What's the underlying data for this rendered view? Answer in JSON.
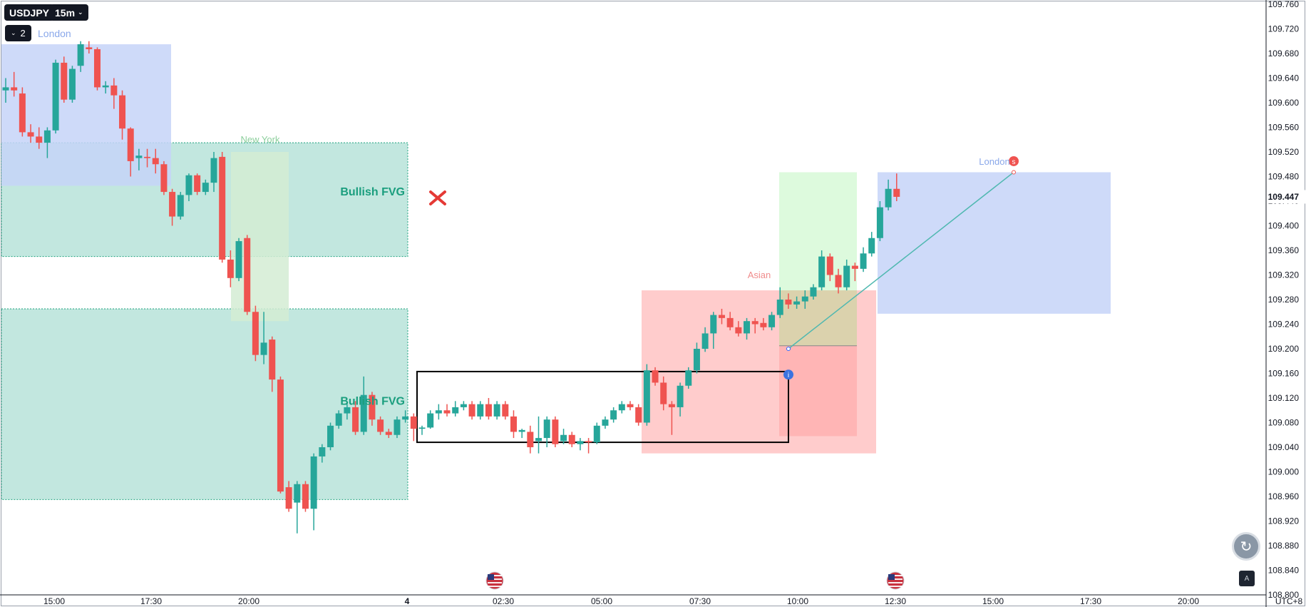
{
  "toolbar": {
    "symbol": "USDJPY",
    "interval": "15m",
    "layer_count": "2",
    "session_label": "London",
    "interval_chevron_icon": "chevron-down-icon",
    "layer_chevron_icon": "chevron-down-icon"
  },
  "chart_data": {
    "type": "candlestick",
    "symbol": "USDJPY",
    "timeframe": "15m",
    "timezone": "UTC+8",
    "current_price": "109.447",
    "ylim": [
      108.8,
      109.76
    ],
    "x_ticks": [
      "15:00",
      "17:30",
      "20:00",
      "4",
      "02:30",
      "05:00",
      "07:30",
      "10:00",
      "12:30",
      "15:00",
      "17:30",
      "20:00"
    ],
    "y_ticks": [
      "109.760",
      "109.720",
      "109.680",
      "109.640",
      "109.600",
      "109.560",
      "109.520",
      "109.480",
      "109.440",
      "109.400",
      "109.360",
      "109.320",
      "109.280",
      "109.240",
      "109.200",
      "109.160",
      "109.120",
      "109.080",
      "109.040",
      "109.000",
      "108.960",
      "108.920",
      "108.880",
      "108.840",
      "108.800"
    ],
    "annotations": {
      "fvg_label": "Bullish FVG",
      "ny_session": "New York",
      "asian_session": "Asian",
      "london_session": "London",
      "entry_marker": "i",
      "exit_marker": "s"
    },
    "colors": {
      "up": "#26a69a",
      "down": "#ef5350",
      "fvg_fill": "#bfe6dd",
      "fvg_text": "#1a9e7e",
      "london_fill": "#c6d3f8",
      "asian_fill": "#ffc9c9",
      "ny_fill": "#d3ecd3",
      "target_fill": "#d9f9d9",
      "stop_fill": "#ffb3b3",
      "cross": "#e53935",
      "trendline": "#4fb8b0"
    },
    "candles": [
      {
        "o": 109.62,
        "h": 109.64,
        "l": 109.6,
        "c": 109.625
      },
      {
        "o": 109.625,
        "h": 109.65,
        "l": 109.61,
        "c": 109.62
      },
      {
        "o": 109.615,
        "h": 109.625,
        "l": 109.545,
        "c": 109.552
      },
      {
        "o": 109.552,
        "h": 109.565,
        "l": 109.535,
        "c": 109.545
      },
      {
        "o": 109.545,
        "h": 109.56,
        "l": 109.525,
        "c": 109.535
      },
      {
        "o": 109.535,
        "h": 109.56,
        "l": 109.51,
        "c": 109.555
      },
      {
        "o": 109.555,
        "h": 109.67,
        "l": 109.55,
        "c": 109.665
      },
      {
        "o": 109.665,
        "h": 109.675,
        "l": 109.6,
        "c": 109.605
      },
      {
        "o": 109.605,
        "h": 109.66,
        "l": 109.6,
        "c": 109.655
      },
      {
        "o": 109.66,
        "h": 109.7,
        "l": 109.65,
        "c": 109.695
      },
      {
        "o": 109.69,
        "h": 109.7,
        "l": 109.68,
        "c": 109.687
      },
      {
        "o": 109.687,
        "h": 109.69,
        "l": 109.62,
        "c": 109.625
      },
      {
        "o": 109.625,
        "h": 109.635,
        "l": 109.615,
        "c": 109.628
      },
      {
        "o": 109.628,
        "h": 109.64,
        "l": 109.59,
        "c": 109.612
      },
      {
        "o": 109.612,
        "h": 109.62,
        "l": 109.54,
        "c": 109.558
      },
      {
        "o": 109.558,
        "h": 109.56,
        "l": 109.48,
        "c": 109.505
      },
      {
        "o": 109.51,
        "h": 109.525,
        "l": 109.49,
        "c": 109.514
      },
      {
        "o": 109.512,
        "h": 109.525,
        "l": 109.495,
        "c": 109.51
      },
      {
        "o": 109.51,
        "h": 109.525,
        "l": 109.485,
        "c": 109.5
      },
      {
        "o": 109.5,
        "h": 109.505,
        "l": 109.45,
        "c": 109.455
      },
      {
        "o": 109.455,
        "h": 109.46,
        "l": 109.4,
        "c": 109.415
      },
      {
        "o": 109.415,
        "h": 109.455,
        "l": 109.41,
        "c": 109.45
      },
      {
        "o": 109.45,
        "h": 109.485,
        "l": 109.44,
        "c": 109.482
      },
      {
        "o": 109.482,
        "h": 109.485,
        "l": 109.45,
        "c": 109.455
      },
      {
        "o": 109.455,
        "h": 109.475,
        "l": 109.45,
        "c": 109.47
      },
      {
        "o": 109.47,
        "h": 109.52,
        "l": 109.455,
        "c": 109.51
      },
      {
        "o": 109.512,
        "h": 109.52,
        "l": 109.34,
        "c": 109.345
      },
      {
        "o": 109.345,
        "h": 109.36,
        "l": 109.3,
        "c": 109.315
      },
      {
        "o": 109.315,
        "h": 109.38,
        "l": 109.31,
        "c": 109.375
      },
      {
        "o": 109.38,
        "h": 109.385,
        "l": 109.255,
        "c": 109.26
      },
      {
        "o": 109.26,
        "h": 109.27,
        "l": 109.18,
        "c": 109.19
      },
      {
        "o": 109.19,
        "h": 109.26,
        "l": 109.175,
        "c": 109.21
      },
      {
        "o": 109.215,
        "h": 109.22,
        "l": 109.13,
        "c": 109.15
      },
      {
        "o": 109.15,
        "h": 109.155,
        "l": 108.965,
        "c": 108.968
      },
      {
        "o": 108.975,
        "h": 108.985,
        "l": 108.935,
        "c": 108.94
      },
      {
        "o": 108.95,
        "h": 108.985,
        "l": 108.9,
        "c": 108.98
      },
      {
        "o": 108.98,
        "h": 108.985,
        "l": 108.935,
        "c": 108.94
      },
      {
        "o": 108.94,
        "h": 109.03,
        "l": 108.905,
        "c": 109.025
      },
      {
        "o": 109.025,
        "h": 109.045,
        "l": 109.015,
        "c": 109.04
      },
      {
        "o": 109.04,
        "h": 109.08,
        "l": 109.035,
        "c": 109.075
      },
      {
        "o": 109.075,
        "h": 109.1,
        "l": 109.07,
        "c": 109.095
      },
      {
        "o": 109.095,
        "h": 109.11,
        "l": 109.085,
        "c": 109.105
      },
      {
        "o": 109.105,
        "h": 109.115,
        "l": 109.06,
        "c": 109.065
      },
      {
        "o": 109.065,
        "h": 109.155,
        "l": 109.06,
        "c": 109.125
      },
      {
        "o": 109.125,
        "h": 109.13,
        "l": 109.075,
        "c": 109.085
      },
      {
        "o": 109.085,
        "h": 109.09,
        "l": 109.06,
        "c": 109.065
      },
      {
        "o": 109.065,
        "h": 109.07,
        "l": 109.055,
        "c": 109.06
      },
      {
        "o": 109.06,
        "h": 109.09,
        "l": 109.055,
        "c": 109.085
      },
      {
        "o": 109.085,
        "h": 109.1,
        "l": 109.08,
        "c": 109.09
      },
      {
        "o": 109.09,
        "h": 109.095,
        "l": 109.05,
        "c": 109.07
      },
      {
        "o": 109.07,
        "h": 109.075,
        "l": 109.06,
        "c": 109.072
      },
      {
        "o": 109.072,
        "h": 109.1,
        "l": 109.07,
        "c": 109.095
      },
      {
        "o": 109.095,
        "h": 109.11,
        "l": 109.085,
        "c": 109.1
      },
      {
        "o": 109.1,
        "h": 109.11,
        "l": 109.09,
        "c": 109.095
      },
      {
        "o": 109.095,
        "h": 109.115,
        "l": 109.09,
        "c": 109.105
      },
      {
        "o": 109.105,
        "h": 109.115,
        "l": 109.1,
        "c": 109.11
      },
      {
        "o": 109.11,
        "h": 109.115,
        "l": 109.085,
        "c": 109.09
      },
      {
        "o": 109.09,
        "h": 109.115,
        "l": 109.085,
        "c": 109.11
      },
      {
        "o": 109.11,
        "h": 109.12,
        "l": 109.085,
        "c": 109.09
      },
      {
        "o": 109.09,
        "h": 109.115,
        "l": 109.085,
        "c": 109.11
      },
      {
        "o": 109.11,
        "h": 109.115,
        "l": 109.085,
        "c": 109.09
      },
      {
        "o": 109.09,
        "h": 109.1,
        "l": 109.055,
        "c": 109.065
      },
      {
        "o": 109.065,
        "h": 109.07,
        "l": 109.055,
        "c": 109.068
      },
      {
        "o": 109.065,
        "h": 109.075,
        "l": 109.03,
        "c": 109.04
      },
      {
        "o": 109.05,
        "h": 109.09,
        "l": 109.03,
        "c": 109.055
      },
      {
        "o": 109.055,
        "h": 109.09,
        "l": 109.04,
        "c": 109.085
      },
      {
        "o": 109.085,
        "h": 109.09,
        "l": 109.04,
        "c": 109.045
      },
      {
        "o": 109.05,
        "h": 109.07,
        "l": 109.045,
        "c": 109.06
      },
      {
        "o": 109.06,
        "h": 109.065,
        "l": 109.04,
        "c": 109.045
      },
      {
        "o": 109.045,
        "h": 109.055,
        "l": 109.035,
        "c": 109.05
      },
      {
        "o": 109.05,
        "h": 109.055,
        "l": 109.03,
        "c": 109.048
      },
      {
        "o": 109.048,
        "h": 109.08,
        "l": 109.045,
        "c": 109.075
      },
      {
        "o": 109.075,
        "h": 109.09,
        "l": 109.07,
        "c": 109.085
      },
      {
        "o": 109.085,
        "h": 109.105,
        "l": 109.08,
        "c": 109.1
      },
      {
        "o": 109.1,
        "h": 109.115,
        "l": 109.095,
        "c": 109.11
      },
      {
        "o": 109.11,
        "h": 109.115,
        "l": 109.1,
        "c": 109.105
      },
      {
        "o": 109.105,
        "h": 109.11,
        "l": 109.075,
        "c": 109.08
      },
      {
        "o": 109.08,
        "h": 109.175,
        "l": 109.075,
        "c": 109.165
      },
      {
        "o": 109.165,
        "h": 109.17,
        "l": 109.14,
        "c": 109.145
      },
      {
        "o": 109.145,
        "h": 109.155,
        "l": 109.1,
        "c": 109.11
      },
      {
        "o": 109.11,
        "h": 109.115,
        "l": 109.06,
        "c": 109.105
      },
      {
        "o": 109.105,
        "h": 109.145,
        "l": 109.09,
        "c": 109.14
      },
      {
        "o": 109.14,
        "h": 109.17,
        "l": 109.135,
        "c": 109.165
      },
      {
        "o": 109.165,
        "h": 109.21,
        "l": 109.16,
        "c": 109.2
      },
      {
        "o": 109.2,
        "h": 109.235,
        "l": 109.195,
        "c": 109.225
      },
      {
        "o": 109.225,
        "h": 109.26,
        "l": 109.2,
        "c": 109.255
      },
      {
        "o": 109.255,
        "h": 109.265,
        "l": 109.24,
        "c": 109.25
      },
      {
        "o": 109.25,
        "h": 109.26,
        "l": 109.23,
        "c": 109.235
      },
      {
        "o": 109.235,
        "h": 109.245,
        "l": 109.22,
        "c": 109.225
      },
      {
        "o": 109.225,
        "h": 109.25,
        "l": 109.215,
        "c": 109.245
      },
      {
        "o": 109.245,
        "h": 109.25,
        "l": 109.225,
        "c": 109.24
      },
      {
        "o": 109.242,
        "h": 109.25,
        "l": 109.23,
        "c": 109.235
      },
      {
        "o": 109.235,
        "h": 109.26,
        "l": 109.23,
        "c": 109.255
      },
      {
        "o": 109.255,
        "h": 109.3,
        "l": 109.25,
        "c": 109.28
      },
      {
        "o": 109.28,
        "h": 109.29,
        "l": 109.265,
        "c": 109.272
      },
      {
        "o": 109.272,
        "h": 109.285,
        "l": 109.265,
        "c": 109.277
      },
      {
        "o": 109.277,
        "h": 109.295,
        "l": 109.265,
        "c": 109.285
      },
      {
        "o": 109.285,
        "h": 109.305,
        "l": 109.28,
        "c": 109.3
      },
      {
        "o": 109.3,
        "h": 109.36,
        "l": 109.295,
        "c": 109.35
      },
      {
        "o": 109.35,
        "h": 109.355,
        "l": 109.31,
        "c": 109.32
      },
      {
        "o": 109.32,
        "h": 109.33,
        "l": 109.29,
        "c": 109.3
      },
      {
        "o": 109.3,
        "h": 109.345,
        "l": 109.295,
        "c": 109.335
      },
      {
        "o": 109.335,
        "h": 109.34,
        "l": 109.31,
        "c": 109.33
      },
      {
        "o": 109.33,
        "h": 109.365,
        "l": 109.325,
        "c": 109.355
      },
      {
        "o": 109.355,
        "h": 109.39,
        "l": 109.35,
        "c": 109.38
      },
      {
        "o": 109.38,
        "h": 109.44,
        "l": 109.375,
        "c": 109.43
      },
      {
        "o": 109.43,
        "h": 109.475,
        "l": 109.425,
        "c": 109.46
      },
      {
        "o": 109.46,
        "h": 109.485,
        "l": 109.44,
        "c": 109.447
      }
    ]
  },
  "controls": {
    "scroll_button_icon": "reset-scroll-icon",
    "auto_scale_label": "A",
    "us_flag_icon": "us-flag-icon",
    "au_flag_icon": "au-flag-icon",
    "cross_icon": "close-icon"
  }
}
